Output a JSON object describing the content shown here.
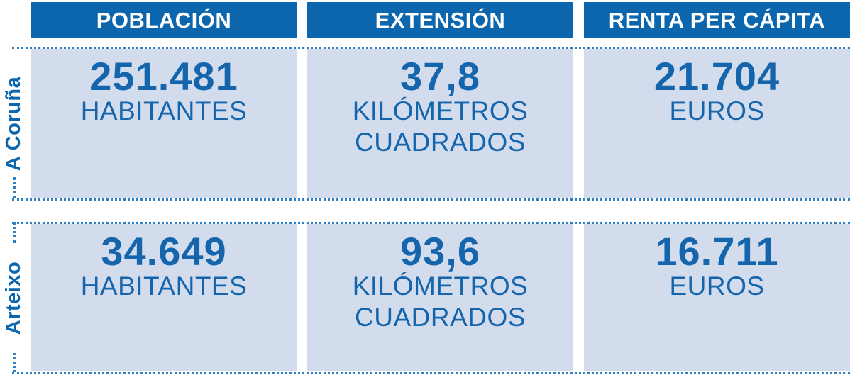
{
  "headers": [
    "POBLACIÓN",
    "EXTENSIÓN",
    "RENTA PER CÁPITA"
  ],
  "rows": [
    {
      "label": "A Coruña",
      "poblacion": {
        "value": "251.481",
        "unit": "HABITANTES"
      },
      "extension": {
        "value": "37,8",
        "unit_line1": "KILÓMETROS",
        "unit_line2": "CUADRADOS"
      },
      "renta": {
        "value": "21.704",
        "unit": "EUROS"
      }
    },
    {
      "label": "Arteixo",
      "poblacion": {
        "value": "34.649",
        "unit": "HABITANTES"
      },
      "extension": {
        "value": "93,6",
        "unit_line1": "KILÓMETROS",
        "unit_line2": "CUADRADOS"
      },
      "renta": {
        "value": "16.711",
        "unit": "EUROS"
      }
    }
  ],
  "colors": {
    "header_bg": "#0b66ad",
    "cell_bg": "#d2dcec",
    "text": "#1565ad"
  }
}
